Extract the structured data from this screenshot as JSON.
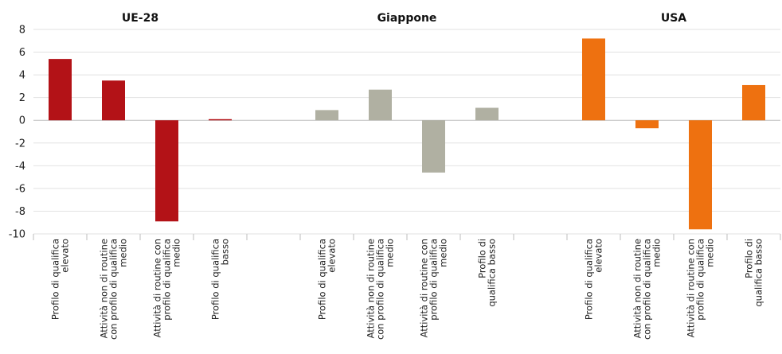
{
  "chart_data": {
    "type": "bar",
    "ylim": [
      -10,
      8
    ],
    "yticks": [
      8,
      6,
      4,
      2,
      0,
      -2,
      -4,
      -6,
      -8,
      -10
    ],
    "grid": true,
    "categories": [
      [
        "Profilo di qualifica",
        "elevato"
      ],
      [
        "Attività non di routine",
        "con profilo di qualifica",
        "medio"
      ],
      [
        "Attività di routine con",
        "profilo di qualifica",
        "medio"
      ],
      [
        "Profilo di qualifica",
        "basso"
      ]
    ],
    "panels": [
      {
        "title": "UE-28",
        "color": "#b31217",
        "values": [
          5.4,
          3.5,
          -8.9,
          0.1
        ],
        "labels": [
          [
            "Profilo di qualifica",
            "elevato"
          ],
          [
            "Attività non di routine",
            "con profilo di qualifica",
            "medio"
          ],
          [
            "Attività di routine con",
            "profilo di qualifica",
            "medio"
          ],
          [
            "Profilo di qualifica",
            "basso"
          ]
        ]
      },
      {
        "title": "Giappone",
        "color": "#b0b0a2",
        "values": [
          0.9,
          2.7,
          -4.6,
          1.1
        ],
        "labels": [
          [
            "Profilo di qualifica",
            "elevato"
          ],
          [
            "Attività non di routine",
            "con profilo di qualifica",
            "medio"
          ],
          [
            "Attività di routine con",
            "profilo di qualifica",
            "medio"
          ],
          [
            "Profilo di",
            "qualifica basso"
          ]
        ]
      },
      {
        "title": "USA",
        "color": "#ee7110",
        "values": [
          7.2,
          -0.7,
          -9.6,
          3.1
        ],
        "labels": [
          [
            "Profilo di qualifica",
            "elevato"
          ],
          [
            "Attività non di routine",
            "con profilo di qualifica",
            "medio"
          ],
          [
            "Attività di routine con",
            "profilo di qualifica",
            "medio"
          ],
          [
            "Profilo di",
            "qualifica basso"
          ]
        ]
      }
    ]
  }
}
